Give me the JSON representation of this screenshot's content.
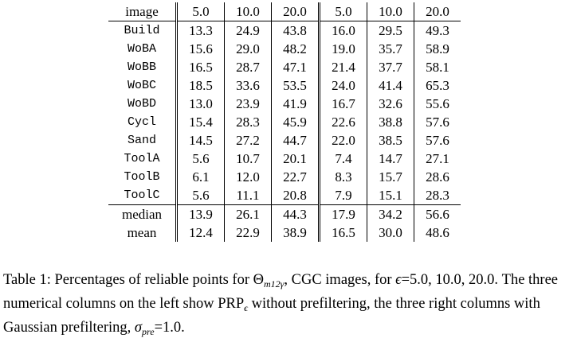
{
  "table": {
    "headers": [
      "image",
      "5.0",
      "10.0",
      "20.0",
      "5.0",
      "10.0",
      "20.0"
    ],
    "rows": [
      {
        "name": "Build",
        "values": [
          "13.3",
          "24.9",
          "43.8",
          "16.0",
          "29.5",
          "49.3"
        ]
      },
      {
        "name": "WoBA",
        "values": [
          "15.6",
          "29.0",
          "48.2",
          "19.0",
          "35.7",
          "58.9"
        ]
      },
      {
        "name": "WoBB",
        "values": [
          "16.5",
          "28.7",
          "47.1",
          "21.4",
          "37.7",
          "58.1"
        ]
      },
      {
        "name": "WoBC",
        "values": [
          "18.5",
          "33.6",
          "53.5",
          "24.0",
          "41.4",
          "65.3"
        ]
      },
      {
        "name": "WoBD",
        "values": [
          "13.0",
          "23.9",
          "41.9",
          "16.7",
          "32.6",
          "55.6"
        ]
      },
      {
        "name": "Cycl",
        "values": [
          "15.4",
          "28.3",
          "45.9",
          "22.6",
          "38.8",
          "57.6"
        ]
      },
      {
        "name": "Sand",
        "values": [
          "14.5",
          "27.2",
          "44.7",
          "22.0",
          "38.5",
          "57.6"
        ]
      },
      {
        "name": "ToolA",
        "values": [
          "5.6",
          "10.7",
          "20.1",
          "7.4",
          "14.7",
          "27.1"
        ]
      },
      {
        "name": "ToolB",
        "values": [
          "6.1",
          "12.0",
          "22.7",
          "8.3",
          "15.7",
          "28.6"
        ]
      },
      {
        "name": "ToolC",
        "values": [
          "5.6",
          "11.1",
          "20.8",
          "7.9",
          "15.1",
          "28.3"
        ]
      }
    ],
    "summary": [
      {
        "name": "median",
        "values": [
          "13.9",
          "26.1",
          "44.3",
          "17.9",
          "34.2",
          "56.6"
        ]
      },
      {
        "name": "mean",
        "values": [
          "12.4",
          "22.9",
          "38.9",
          "16.5",
          "30.0",
          "48.6"
        ]
      }
    ]
  },
  "caption": {
    "part1": "Table 1: Percentages of reliable points for Θ",
    "theta_sub": "m12γ",
    "part2": ", CGC images, for ",
    "epsilon": "ϵ",
    "part3": "=5.0, 10.0, 20.0. The three numerical columns on the left show PRP",
    "prp_sub": "ϵ",
    "part4": " without prefiltering, the three right columns with Gaussian prefiltering, ",
    "sigma": "σ",
    "sigma_sub": "pre",
    "part5": "=1.0."
  }
}
